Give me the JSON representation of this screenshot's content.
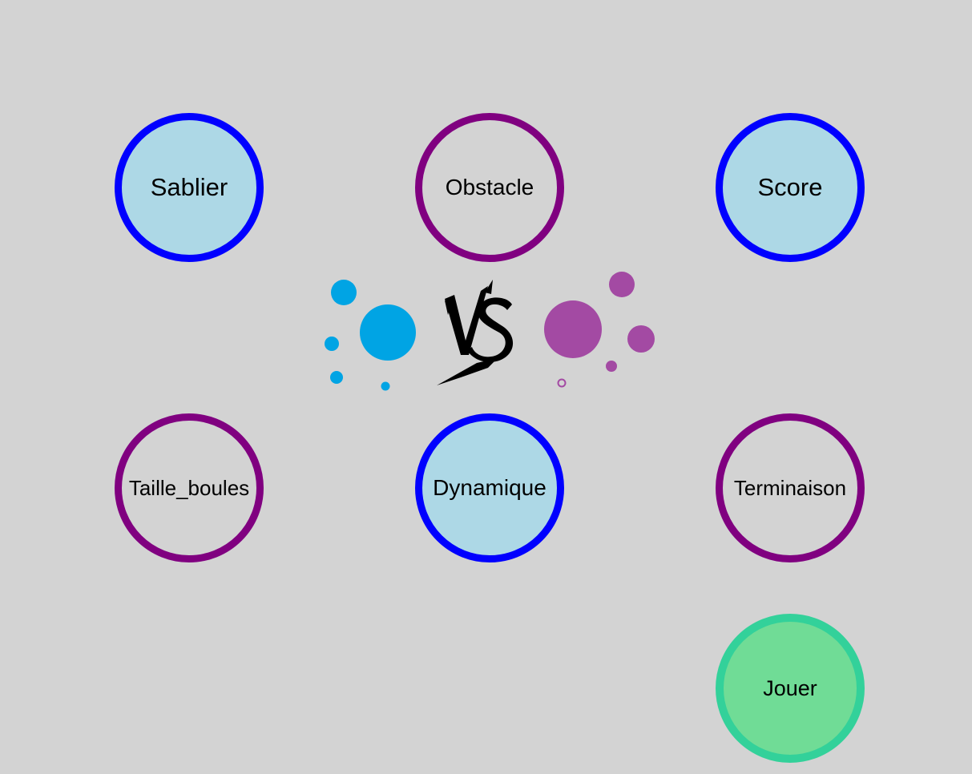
{
  "options": {
    "sablier": {
      "label": "Sablier",
      "enabled": true
    },
    "obstacle": {
      "label": "Obstacle",
      "enabled": false
    },
    "score": {
      "label": "Score",
      "enabled": true
    },
    "taille": {
      "label": "Taille_boules",
      "enabled": false
    },
    "dynamique": {
      "label": "Dynamique",
      "enabled": true
    },
    "terminaison": {
      "label": "Terminaison",
      "enabled": false
    }
  },
  "play": {
    "label": "Jouer"
  },
  "versus": {
    "logo_text": "VS",
    "left_color": "#00a4e4",
    "right_color": "#a34aa3"
  },
  "colors": {
    "background": "#d3d3d3",
    "on_border": "#0000ff",
    "on_fill": "#add8e6",
    "off_border": "#800080",
    "play_border": "#33d19a",
    "play_fill": "#70dc96"
  }
}
